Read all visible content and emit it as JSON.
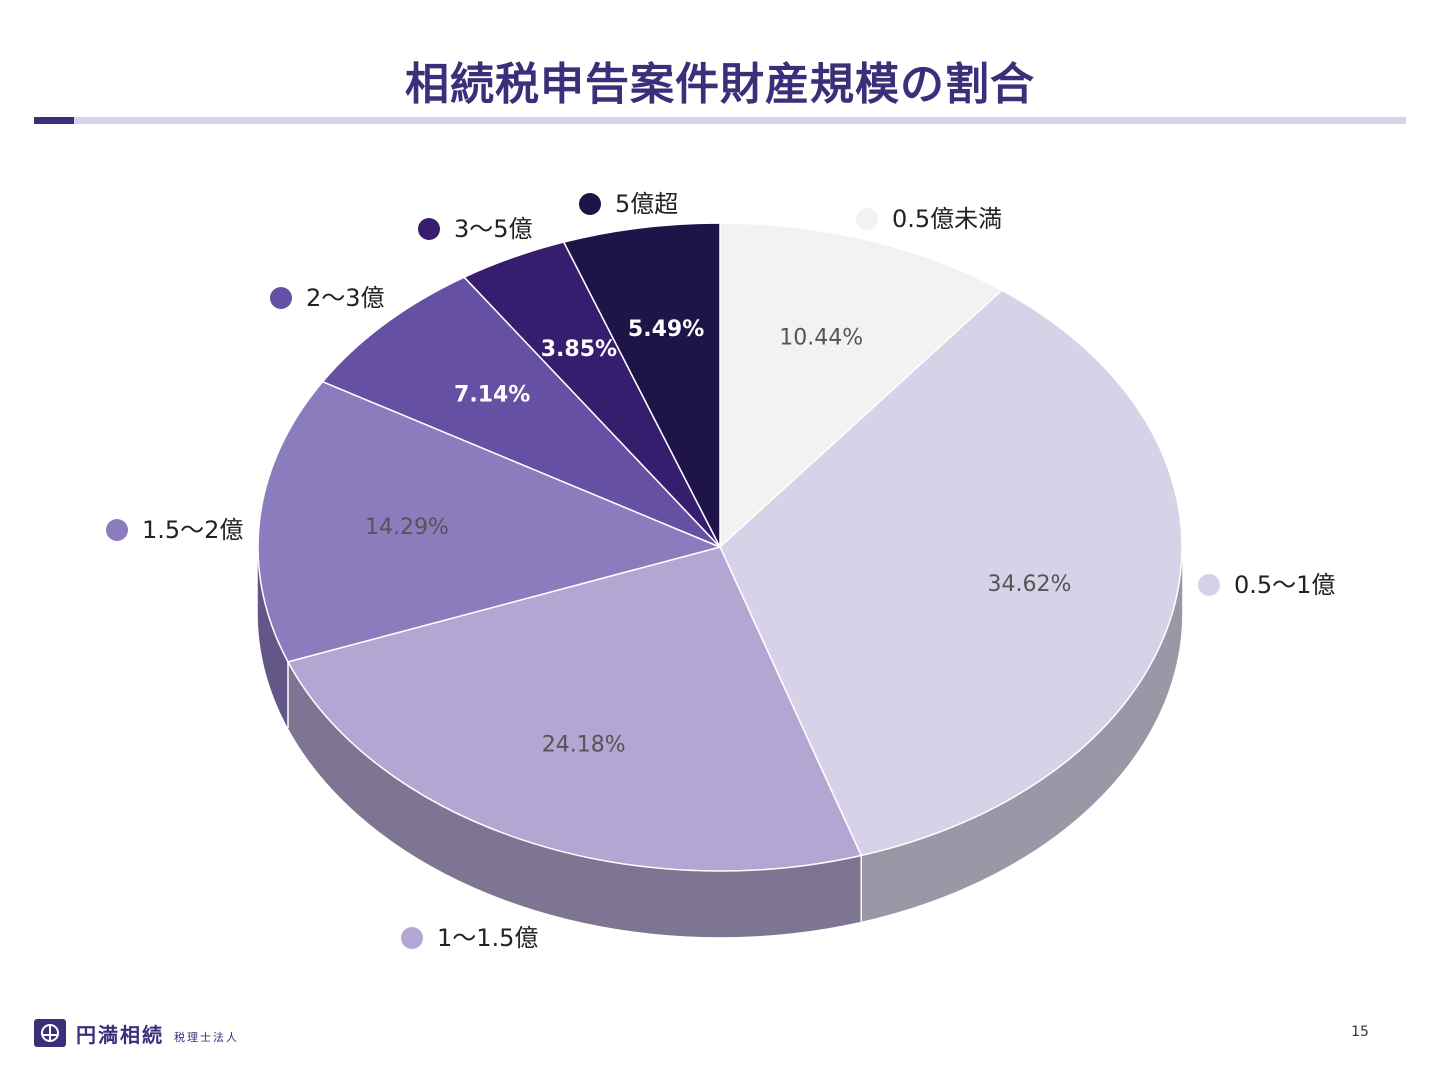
{
  "slide": {
    "title": "相続税申告案件財産規模の割合",
    "page_number": "15"
  },
  "footer": {
    "logo_name": "円満相続",
    "logo_sub": "税理士法人"
  },
  "chart_data": {
    "type": "pie",
    "title": "相続税申告案件財産規模の割合",
    "slices": [
      {
        "label": "0.5億未満",
        "value": 10.44,
        "display": "10.44%",
        "color": "#f2f2f2",
        "side": "#bdbdbd",
        "text_color": "#555555"
      },
      {
        "label": "0.5～1億",
        "value": 34.62,
        "display": "34.62%",
        "color": "#d8d2e8",
        "side": "#9c97a6",
        "text_color": "#555555"
      },
      {
        "label": "1～1.5億",
        "value": 24.18,
        "display": "24.18%",
        "color": "#b3a6d3",
        "side": "#7e7593",
        "text_color": "#555555"
      },
      {
        "label": "1.5～2億",
        "value": 14.29,
        "display": "14.29%",
        "color": "#8b7cbd",
        "side": "#625787",
        "text_color": "#555555"
      },
      {
        "label": "2～3億",
        "value": 7.14,
        "display": "7.14%",
        "color": "#6650a3",
        "side": "#483873",
        "text_color": "#ffffff"
      },
      {
        "label": "3～5億",
        "value": 3.85,
        "display": "3.85%",
        "color": "#361d6e",
        "side": "#23124a",
        "text_color": "#ffffff"
      },
      {
        "label": "5億超",
        "value": 5.49,
        "display": "5.49%",
        "color": "#1e1448",
        "side": "#120c2e",
        "text_color": "#ffffff"
      }
    ]
  }
}
